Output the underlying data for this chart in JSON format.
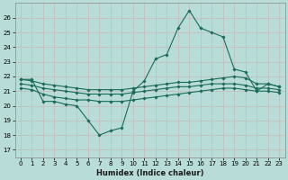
{
  "xlabel": "Humidex (Indice chaleur)",
  "bg_color": "#b8ddd8",
  "grid_color": "#c8b8b8",
  "line_color": "#1a6b5a",
  "xlim": [
    -0.5,
    23.5
  ],
  "ylim": [
    16.5,
    27.0
  ],
  "xticks": [
    0,
    1,
    2,
    3,
    4,
    5,
    6,
    7,
    8,
    9,
    10,
    11,
    12,
    13,
    14,
    15,
    16,
    17,
    18,
    19,
    20,
    21,
    22,
    23
  ],
  "yticks": [
    17,
    18,
    19,
    20,
    21,
    22,
    23,
    24,
    25,
    26
  ],
  "series1": [
    21.8,
    21.8,
    20.3,
    20.3,
    20.1,
    20.0,
    19.0,
    18.0,
    18.3,
    18.5,
    21.0,
    21.7,
    23.2,
    23.5,
    25.3,
    26.5,
    25.3,
    25.0,
    24.7,
    22.5,
    22.3,
    21.0,
    21.5,
    21.3
  ],
  "series2": [
    21.8,
    21.7,
    21.5,
    21.4,
    21.3,
    21.2,
    21.1,
    21.1,
    21.1,
    21.1,
    21.2,
    21.3,
    21.4,
    21.5,
    21.6,
    21.6,
    21.7,
    21.8,
    21.9,
    22.0,
    21.9,
    21.5,
    21.5,
    21.3
  ],
  "series3": [
    21.5,
    21.4,
    21.2,
    21.1,
    21.0,
    20.9,
    20.8,
    20.8,
    20.8,
    20.8,
    20.9,
    21.0,
    21.1,
    21.2,
    21.3,
    21.3,
    21.4,
    21.5,
    21.5,
    21.5,
    21.4,
    21.2,
    21.2,
    21.1
  ],
  "series4": [
    21.2,
    21.1,
    20.8,
    20.6,
    20.5,
    20.4,
    20.4,
    20.3,
    20.3,
    20.3,
    20.4,
    20.5,
    20.6,
    20.7,
    20.8,
    20.9,
    21.0,
    21.1,
    21.2,
    21.2,
    21.1,
    21.0,
    21.0,
    20.9
  ]
}
